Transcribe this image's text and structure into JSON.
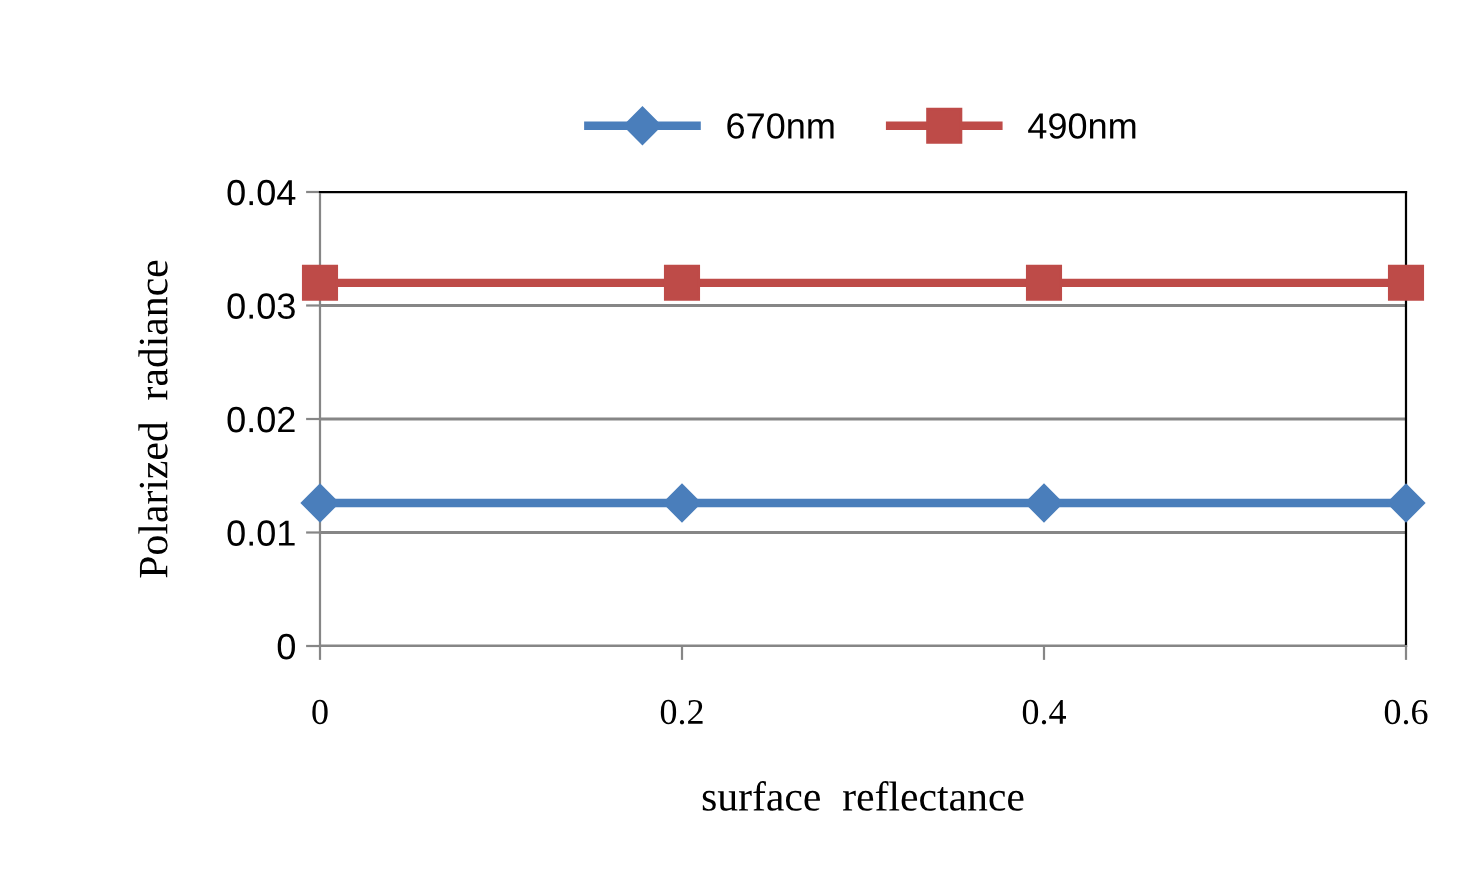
{
  "chart_data": {
    "type": "line",
    "xlabel": "surface  reflectance",
    "ylabel": "Polarized  radiance",
    "x": [
      0,
      0.2,
      0.4,
      0.6
    ],
    "series": [
      {
        "name": "670nm",
        "color": "#4a7ebb",
        "marker": "diamond",
        "values": [
          0.0126,
          0.0126,
          0.0126,
          0.0126
        ]
      },
      {
        "name": "490nm",
        "color": "#be4b48",
        "marker": "square",
        "values": [
          0.032,
          0.032,
          0.032,
          0.032
        ]
      }
    ],
    "xlim": [
      0,
      0.6
    ],
    "xticks": [
      0,
      0.2,
      0.4,
      0.6
    ],
    "ylim": [
      0,
      0.04
    ],
    "yticks": [
      0,
      0.01,
      0.02,
      0.03,
      0.04
    ],
    "grid": "y",
    "legend": "top",
    "line_style": "solid"
  }
}
